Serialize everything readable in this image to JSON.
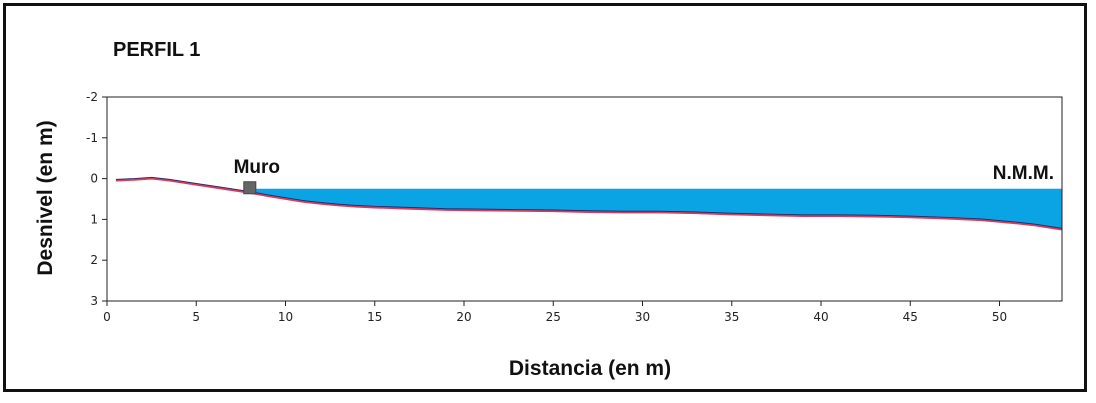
{
  "chart_data": {
    "type": "area",
    "title": "PERFIL 1",
    "xlabel": "Distancia (en m)",
    "ylabel": "Desnivel (en m)",
    "xlim": [
      0,
      53.5
    ],
    "ylim": [
      3,
      -2
    ],
    "y_inverted": true,
    "x_ticks": [
      0,
      5,
      10,
      15,
      20,
      25,
      30,
      35,
      40,
      45,
      50
    ],
    "y_ticks": [
      -2,
      -1,
      0,
      1,
      2,
      3
    ],
    "grid": false,
    "series": [
      {
        "type": "line",
        "color": "#d83a5a",
        "x": [
          0.5,
          1.5,
          2.5,
          3.5,
          5,
          6.5,
          8,
          9,
          10,
          11,
          12,
          13,
          14,
          15,
          17,
          19,
          21,
          23,
          25,
          27,
          29,
          31,
          33,
          35,
          37,
          39,
          41,
          43,
          45,
          47,
          49,
          50,
          51,
          52,
          53.5
        ],
        "y": [
          0.05,
          0.03,
          0.0,
          0.05,
          0.15,
          0.25,
          0.35,
          0.43,
          0.5,
          0.57,
          0.62,
          0.66,
          0.69,
          0.71,
          0.74,
          0.77,
          0.78,
          0.79,
          0.8,
          0.82,
          0.83,
          0.83,
          0.85,
          0.88,
          0.9,
          0.92,
          0.92,
          0.93,
          0.95,
          0.98,
          1.02,
          1.06,
          1.1,
          1.15,
          1.25
        ]
      }
    ],
    "water": {
      "color": "#0aa3e4",
      "level": 0.25,
      "from_x": 8,
      "label": "N.M.M."
    },
    "annotations": [
      {
        "label": "Muro",
        "x": 8,
        "y": 0.2,
        "marker_color": "#666666"
      }
    ]
  }
}
